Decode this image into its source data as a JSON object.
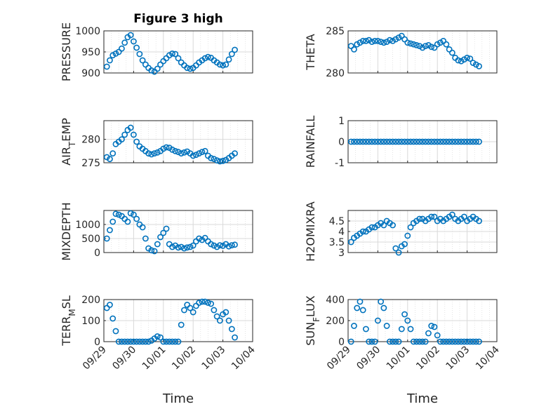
{
  "chart_data": [
    {
      "type": "scatter",
      "title": "Figure 3 high",
      "ylabel": "PRESSURE",
      "ylim": [
        900,
        1000
      ],
      "yticks": [
        900,
        950,
        1000
      ],
      "xlim": [
        "09/29",
        "10/04"
      ],
      "xticks": [
        "09/29",
        "09/30",
        "10/01",
        "10/02",
        "10/03",
        "10/04"
      ],
      "grid": true,
      "x": [
        0.1,
        0.2,
        0.3,
        0.4,
        0.5,
        0.6,
        0.7,
        0.8,
        0.9,
        1.0,
        1.1,
        1.2,
        1.3,
        1.4,
        1.5,
        1.6,
        1.7,
        1.8,
        1.9,
        2.0,
        2.1,
        2.2,
        2.3,
        2.4,
        2.5,
        2.6,
        2.7,
        2.8,
        2.9,
        3.0,
        3.1,
        3.2,
        3.3,
        3.4,
        3.5,
        3.6,
        3.7,
        3.8,
        3.9,
        4.0,
        4.1,
        4.2,
        4.3,
        4.4
      ],
      "values": [
        915,
        930,
        942,
        946,
        950,
        958,
        972,
        985,
        990,
        975,
        960,
        945,
        930,
        920,
        912,
        906,
        903,
        910,
        920,
        928,
        935,
        942,
        946,
        945,
        935,
        925,
        918,
        912,
        910,
        912,
        918,
        925,
        930,
        935,
        938,
        936,
        930,
        925,
        920,
        918,
        920,
        932,
        945,
        955
      ]
    },
    {
      "type": "scatter",
      "title": "",
      "ylabel": "THETA",
      "ylim": [
        280,
        285
      ],
      "yticks": [
        280,
        285
      ],
      "xlim": [
        "09/29",
        "10/04"
      ],
      "xticks": [
        "09/29",
        "09/30",
        "10/01",
        "10/02",
        "10/03",
        "10/04"
      ],
      "grid": true,
      "x": [
        0.1,
        0.2,
        0.3,
        0.4,
        0.5,
        0.6,
        0.7,
        0.8,
        0.9,
        1.0,
        1.1,
        1.2,
        1.3,
        1.4,
        1.5,
        1.6,
        1.7,
        1.8,
        1.9,
        2.0,
        2.1,
        2.2,
        2.3,
        2.4,
        2.5,
        2.6,
        2.7,
        2.8,
        2.9,
        3.0,
        3.1,
        3.2,
        3.3,
        3.4,
        3.5,
        3.6,
        3.7,
        3.8,
        3.9,
        4.0,
        4.1,
        4.2,
        4.3,
        4.4
      ],
      "values": [
        283.2,
        282.8,
        283.4,
        283.6,
        283.8,
        283.8,
        283.9,
        283.7,
        283.8,
        283.8,
        283.7,
        283.6,
        283.7,
        283.9,
        283.8,
        284.0,
        284.2,
        284.4,
        284.0,
        283.6,
        283.5,
        283.4,
        283.3,
        283.2,
        283.0,
        283.2,
        283.3,
        283.1,
        283.0,
        283.4,
        283.6,
        283.8,
        283.4,
        282.8,
        282.4,
        281.8,
        281.5,
        281.4,
        281.6,
        281.8,
        281.7,
        281.2,
        281.0,
        280.8
      ]
    },
    {
      "type": "scatter",
      "title": "",
      "ylabel": "AIR_T_EMP",
      "ylim": [
        275,
        284
      ],
      "yticks": [
        275,
        280
      ],
      "xlim": [
        "09/29",
        "10/04"
      ],
      "xticks": [
        "09/29",
        "09/30",
        "10/01",
        "10/02",
        "10/03",
        "10/04"
      ],
      "grid": true,
      "x": [
        0.1,
        0.2,
        0.3,
        0.4,
        0.5,
        0.6,
        0.7,
        0.8,
        0.9,
        1.0,
        1.1,
        1.2,
        1.3,
        1.4,
        1.5,
        1.6,
        1.7,
        1.8,
        1.9,
        2.0,
        2.1,
        2.2,
        2.3,
        2.4,
        2.5,
        2.6,
        2.7,
        2.8,
        2.9,
        3.0,
        3.1,
        3.2,
        3.3,
        3.4,
        3.5,
        3.6,
        3.7,
        3.8,
        3.9,
        4.0,
        4.1,
        4.2,
        4.3,
        4.4
      ],
      "values": [
        276.2,
        275.8,
        277.0,
        279.0,
        279.5,
        280.0,
        281.0,
        282.0,
        282.5,
        281.0,
        279.5,
        278.5,
        278.0,
        277.5,
        277.0,
        276.8,
        277.0,
        277.2,
        277.5,
        278.0,
        278.3,
        278.2,
        277.8,
        277.5,
        277.3,
        277.0,
        277.2,
        277.4,
        277.0,
        276.5,
        276.7,
        277.0,
        277.3,
        277.5,
        276.5,
        276.0,
        275.8,
        275.5,
        275.3,
        275.4,
        275.6,
        276.0,
        276.5,
        277.0
      ]
    },
    {
      "type": "scatter",
      "title": "",
      "ylabel": "RAINFALL",
      "ylim": [
        -1,
        1
      ],
      "yticks": [
        -1,
        0,
        1
      ],
      "xlim": [
        "09/29",
        "10/04"
      ],
      "xticks": [
        "09/29",
        "09/30",
        "10/01",
        "10/02",
        "10/03",
        "10/04"
      ],
      "grid": true,
      "x": [
        0.1,
        0.2,
        0.3,
        0.4,
        0.5,
        0.6,
        0.7,
        0.8,
        0.9,
        1.0,
        1.1,
        1.2,
        1.3,
        1.4,
        1.5,
        1.6,
        1.7,
        1.8,
        1.9,
        2.0,
        2.1,
        2.2,
        2.3,
        2.4,
        2.5,
        2.6,
        2.7,
        2.8,
        2.9,
        3.0,
        3.1,
        3.2,
        3.3,
        3.4,
        3.5,
        3.6,
        3.7,
        3.8,
        3.9,
        4.0,
        4.1,
        4.2,
        4.3,
        4.4
      ],
      "values": [
        0,
        0,
        0,
        0,
        0,
        0,
        0,
        0,
        0,
        0,
        0,
        0,
        0,
        0,
        0,
        0,
        0,
        0,
        0,
        0,
        0,
        0,
        0,
        0,
        0,
        0,
        0,
        0,
        0,
        0,
        0,
        0,
        0,
        0,
        0,
        0,
        0,
        0,
        0,
        0,
        0,
        0,
        0,
        0
      ]
    },
    {
      "type": "scatter",
      "title": "",
      "ylabel": "MIXDEPTH",
      "ylim": [
        0,
        1500
      ],
      "yticks": [
        0,
        500,
        1000
      ],
      "xlim": [
        "09/29",
        "10/04"
      ],
      "xticks": [
        "09/29",
        "09/30",
        "10/01",
        "10/02",
        "10/03",
        "10/04"
      ],
      "grid": true,
      "x": [
        0.1,
        0.2,
        0.3,
        0.4,
        0.5,
        0.6,
        0.7,
        0.8,
        0.9,
        1.0,
        1.1,
        1.2,
        1.3,
        1.4,
        1.5,
        1.6,
        1.7,
        1.8,
        1.9,
        2.0,
        2.1,
        2.2,
        2.3,
        2.4,
        2.5,
        2.6,
        2.7,
        2.8,
        2.9,
        3.0,
        3.1,
        3.2,
        3.3,
        3.4,
        3.5,
        3.6,
        3.7,
        3.8,
        3.9,
        4.0,
        4.1,
        4.2,
        4.3,
        4.4
      ],
      "values": [
        500,
        800,
        1100,
        1380,
        1350,
        1300,
        1200,
        1100,
        1400,
        1350,
        1200,
        1000,
        900,
        500,
        150,
        80,
        50,
        300,
        550,
        700,
        850,
        300,
        200,
        250,
        180,
        200,
        150,
        180,
        200,
        250,
        400,
        500,
        450,
        520,
        400,
        300,
        250,
        200,
        260,
        240,
        300,
        220,
        260,
        280
      ]
    },
    {
      "type": "scatter",
      "title": "",
      "ylabel": "H2OMIXRA",
      "ylim": [
        3,
        5
      ],
      "yticks": [
        3,
        3.5,
        4,
        4.5
      ],
      "xlim": [
        "09/29",
        "10/04"
      ],
      "xticks": [
        "09/29",
        "09/30",
        "10/01",
        "10/02",
        "10/03",
        "10/04"
      ],
      "grid": true,
      "x": [
        0.1,
        0.2,
        0.3,
        0.4,
        0.5,
        0.6,
        0.7,
        0.8,
        0.9,
        1.0,
        1.1,
        1.2,
        1.3,
        1.4,
        1.5,
        1.6,
        1.7,
        1.8,
        1.9,
        2.0,
        2.1,
        2.2,
        2.3,
        2.4,
        2.5,
        2.6,
        2.7,
        2.8,
        2.9,
        3.0,
        3.1,
        3.2,
        3.3,
        3.4,
        3.5,
        3.6,
        3.7,
        3.8,
        3.9,
        4.0,
        4.1,
        4.2,
        4.3,
        4.4
      ],
      "values": [
        3.5,
        3.7,
        3.8,
        3.9,
        4.0,
        4.0,
        4.1,
        4.2,
        4.2,
        4.3,
        4.4,
        4.3,
        4.5,
        4.4,
        4.3,
        3.2,
        3.0,
        3.3,
        3.4,
        3.8,
        4.2,
        4.4,
        4.5,
        4.6,
        4.6,
        4.5,
        4.6,
        4.7,
        4.7,
        4.5,
        4.6,
        4.5,
        4.6,
        4.7,
        4.8,
        4.6,
        4.5,
        4.6,
        4.7,
        4.5,
        4.6,
        4.7,
        4.6,
        4.5
      ]
    },
    {
      "type": "scatter",
      "title": "",
      "ylabel": "TERR_M_SL",
      "ylim": [
        0,
        200
      ],
      "yticks": [
        0,
        100,
        200
      ],
      "xlim": [
        "09/29",
        "10/04"
      ],
      "xticks": [
        "09/29",
        "09/30",
        "10/01",
        "10/02",
        "10/03",
        "10/04"
      ],
      "xlabel": "Time",
      "grid": true,
      "x": [
        0.1,
        0.2,
        0.3,
        0.4,
        0.5,
        0.6,
        0.7,
        0.8,
        0.9,
        1.0,
        1.1,
        1.2,
        1.3,
        1.4,
        1.5,
        1.6,
        1.7,
        1.8,
        1.9,
        2.0,
        2.1,
        2.2,
        2.3,
        2.4,
        2.5,
        2.6,
        2.7,
        2.8,
        2.9,
        3.0,
        3.1,
        3.2,
        3.3,
        3.4,
        3.5,
        3.6,
        3.7,
        3.8,
        3.9,
        4.0,
        4.1,
        4.2,
        4.3,
        4.4
      ],
      "values": [
        160,
        175,
        110,
        50,
        0,
        0,
        0,
        0,
        0,
        0,
        0,
        0,
        0,
        0,
        0,
        5,
        15,
        25,
        20,
        0,
        0,
        0,
        0,
        0,
        0,
        80,
        150,
        175,
        160,
        140,
        170,
        185,
        190,
        190,
        185,
        180,
        150,
        120,
        100,
        130,
        140,
        100,
        60,
        20
      ]
    },
    {
      "type": "scatter",
      "title": "",
      "ylabel": "SUN_F_LUX",
      "ylim": [
        0,
        400
      ],
      "yticks": [
        0,
        200,
        400
      ],
      "xlim": [
        "09/29",
        "10/04"
      ],
      "xticks": [
        "09/29",
        "09/30",
        "10/01",
        "10/02",
        "10/03",
        "10/04"
      ],
      "xlabel": "Time",
      "grid": true,
      "x": [
        0.1,
        0.2,
        0.3,
        0.4,
        0.5,
        0.6,
        0.7,
        0.8,
        0.9,
        1.0,
        1.1,
        1.2,
        1.3,
        1.4,
        1.5,
        1.6,
        1.7,
        1.8,
        1.9,
        2.0,
        2.1,
        2.2,
        2.3,
        2.4,
        2.5,
        2.6,
        2.7,
        2.8,
        2.9,
        3.0,
        3.1,
        3.2,
        3.3,
        3.4,
        3.5,
        3.6,
        3.7,
        3.8,
        3.9,
        4.0,
        4.1,
        4.2,
        4.3,
        4.4
      ],
      "values": [
        0,
        150,
        320,
        380,
        300,
        120,
        0,
        0,
        0,
        200,
        380,
        320,
        150,
        0,
        0,
        0,
        0,
        120,
        260,
        200,
        120,
        0,
        0,
        0,
        0,
        0,
        80,
        150,
        140,
        60,
        0,
        0,
        0,
        0,
        0,
        0,
        0,
        0,
        0,
        0,
        0,
        0,
        0,
        0
      ]
    }
  ],
  "marker_color": "#0072BD"
}
